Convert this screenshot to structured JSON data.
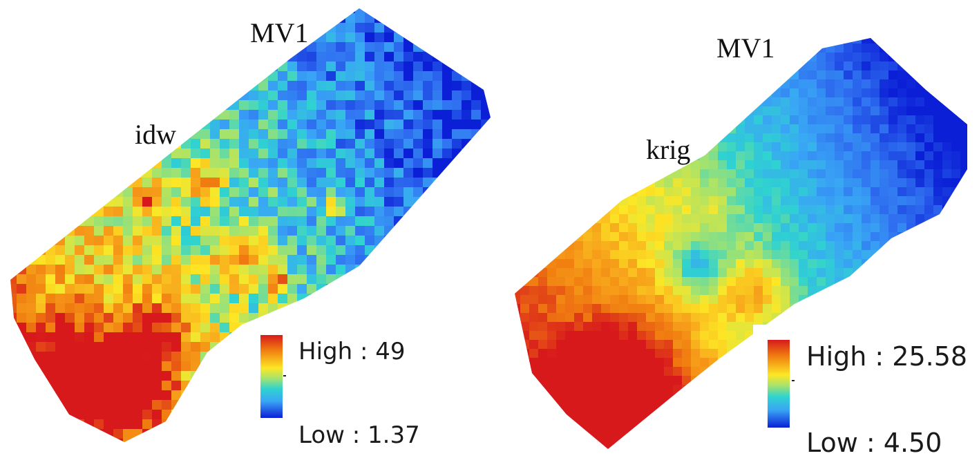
{
  "maps": [
    {
      "method_label": "idw",
      "variable_label": "MV1",
      "legend": {
        "high_label": "High : 49",
        "low_label": "Low : 1.37",
        "high_value": 49,
        "low_value": 1.37
      }
    },
    {
      "method_label": "krig",
      "variable_label": "MV1",
      "legend": {
        "high_label": "High : 25.58",
        "low_label": "Low : 4.50",
        "high_value": 25.58,
        "low_value": 4.5
      }
    }
  ],
  "colormap": [
    "#0b1fd6",
    "#2f6ff0",
    "#39a5f5",
    "#2fd3d0",
    "#a6e36c",
    "#fde725",
    "#f7a21b",
    "#f07b10",
    "#d7191c"
  ]
}
